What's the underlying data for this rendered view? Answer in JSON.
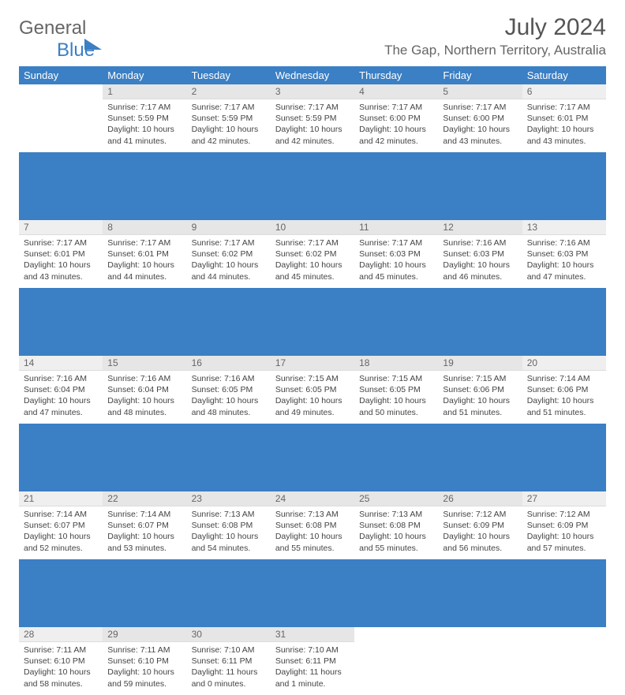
{
  "brand": {
    "part1": "General",
    "part2": "Blue"
  },
  "title": "July 2024",
  "subtitle": "The Gap, Northern Territory, Australia",
  "colors": {
    "accent": "#3b7fc4",
    "header_bg": "#e6e6e6",
    "text": "#444444"
  },
  "day_headers": [
    "Sunday",
    "Monday",
    "Tuesday",
    "Wednesday",
    "Thursday",
    "Friday",
    "Saturday"
  ],
  "weeks": [
    [
      {
        "n": "",
        "sr": "",
        "ss": "",
        "dl1": "",
        "dl2": "",
        "empty": true
      },
      {
        "n": "1",
        "sr": "Sunrise: 7:17 AM",
        "ss": "Sunset: 5:59 PM",
        "dl1": "Daylight: 10 hours",
        "dl2": "and 41 minutes."
      },
      {
        "n": "2",
        "sr": "Sunrise: 7:17 AM",
        "ss": "Sunset: 5:59 PM",
        "dl1": "Daylight: 10 hours",
        "dl2": "and 42 minutes."
      },
      {
        "n": "3",
        "sr": "Sunrise: 7:17 AM",
        "ss": "Sunset: 5:59 PM",
        "dl1": "Daylight: 10 hours",
        "dl2": "and 42 minutes."
      },
      {
        "n": "4",
        "sr": "Sunrise: 7:17 AM",
        "ss": "Sunset: 6:00 PM",
        "dl1": "Daylight: 10 hours",
        "dl2": "and 42 minutes."
      },
      {
        "n": "5",
        "sr": "Sunrise: 7:17 AM",
        "ss": "Sunset: 6:00 PM",
        "dl1": "Daylight: 10 hours",
        "dl2": "and 43 minutes."
      },
      {
        "n": "6",
        "sr": "Sunrise: 7:17 AM",
        "ss": "Sunset: 6:01 PM",
        "dl1": "Daylight: 10 hours",
        "dl2": "and 43 minutes."
      }
    ],
    [
      {
        "n": "7",
        "sr": "Sunrise: 7:17 AM",
        "ss": "Sunset: 6:01 PM",
        "dl1": "Daylight: 10 hours",
        "dl2": "and 43 minutes."
      },
      {
        "n": "8",
        "sr": "Sunrise: 7:17 AM",
        "ss": "Sunset: 6:01 PM",
        "dl1": "Daylight: 10 hours",
        "dl2": "and 44 minutes."
      },
      {
        "n": "9",
        "sr": "Sunrise: 7:17 AM",
        "ss": "Sunset: 6:02 PM",
        "dl1": "Daylight: 10 hours",
        "dl2": "and 44 minutes."
      },
      {
        "n": "10",
        "sr": "Sunrise: 7:17 AM",
        "ss": "Sunset: 6:02 PM",
        "dl1": "Daylight: 10 hours",
        "dl2": "and 45 minutes."
      },
      {
        "n": "11",
        "sr": "Sunrise: 7:17 AM",
        "ss": "Sunset: 6:03 PM",
        "dl1": "Daylight: 10 hours",
        "dl2": "and 45 minutes."
      },
      {
        "n": "12",
        "sr": "Sunrise: 7:16 AM",
        "ss": "Sunset: 6:03 PM",
        "dl1": "Daylight: 10 hours",
        "dl2": "and 46 minutes."
      },
      {
        "n": "13",
        "sr": "Sunrise: 7:16 AM",
        "ss": "Sunset: 6:03 PM",
        "dl1": "Daylight: 10 hours",
        "dl2": "and 47 minutes."
      }
    ],
    [
      {
        "n": "14",
        "sr": "Sunrise: 7:16 AM",
        "ss": "Sunset: 6:04 PM",
        "dl1": "Daylight: 10 hours",
        "dl2": "and 47 minutes."
      },
      {
        "n": "15",
        "sr": "Sunrise: 7:16 AM",
        "ss": "Sunset: 6:04 PM",
        "dl1": "Daylight: 10 hours",
        "dl2": "and 48 minutes."
      },
      {
        "n": "16",
        "sr": "Sunrise: 7:16 AM",
        "ss": "Sunset: 6:05 PM",
        "dl1": "Daylight: 10 hours",
        "dl2": "and 48 minutes."
      },
      {
        "n": "17",
        "sr": "Sunrise: 7:15 AM",
        "ss": "Sunset: 6:05 PM",
        "dl1": "Daylight: 10 hours",
        "dl2": "and 49 minutes."
      },
      {
        "n": "18",
        "sr": "Sunrise: 7:15 AM",
        "ss": "Sunset: 6:05 PM",
        "dl1": "Daylight: 10 hours",
        "dl2": "and 50 minutes."
      },
      {
        "n": "19",
        "sr": "Sunrise: 7:15 AM",
        "ss": "Sunset: 6:06 PM",
        "dl1": "Daylight: 10 hours",
        "dl2": "and 51 minutes."
      },
      {
        "n": "20",
        "sr": "Sunrise: 7:14 AM",
        "ss": "Sunset: 6:06 PM",
        "dl1": "Daylight: 10 hours",
        "dl2": "and 51 minutes."
      }
    ],
    [
      {
        "n": "21",
        "sr": "Sunrise: 7:14 AM",
        "ss": "Sunset: 6:07 PM",
        "dl1": "Daylight: 10 hours",
        "dl2": "and 52 minutes."
      },
      {
        "n": "22",
        "sr": "Sunrise: 7:14 AM",
        "ss": "Sunset: 6:07 PM",
        "dl1": "Daylight: 10 hours",
        "dl2": "and 53 minutes."
      },
      {
        "n": "23",
        "sr": "Sunrise: 7:13 AM",
        "ss": "Sunset: 6:08 PM",
        "dl1": "Daylight: 10 hours",
        "dl2": "and 54 minutes."
      },
      {
        "n": "24",
        "sr": "Sunrise: 7:13 AM",
        "ss": "Sunset: 6:08 PM",
        "dl1": "Daylight: 10 hours",
        "dl2": "and 55 minutes."
      },
      {
        "n": "25",
        "sr": "Sunrise: 7:13 AM",
        "ss": "Sunset: 6:08 PM",
        "dl1": "Daylight: 10 hours",
        "dl2": "and 55 minutes."
      },
      {
        "n": "26",
        "sr": "Sunrise: 7:12 AM",
        "ss": "Sunset: 6:09 PM",
        "dl1": "Daylight: 10 hours",
        "dl2": "and 56 minutes."
      },
      {
        "n": "27",
        "sr": "Sunrise: 7:12 AM",
        "ss": "Sunset: 6:09 PM",
        "dl1": "Daylight: 10 hours",
        "dl2": "and 57 minutes."
      }
    ],
    [
      {
        "n": "28",
        "sr": "Sunrise: 7:11 AM",
        "ss": "Sunset: 6:10 PM",
        "dl1": "Daylight: 10 hours",
        "dl2": "and 58 minutes."
      },
      {
        "n": "29",
        "sr": "Sunrise: 7:11 AM",
        "ss": "Sunset: 6:10 PM",
        "dl1": "Daylight: 10 hours",
        "dl2": "and 59 minutes."
      },
      {
        "n": "30",
        "sr": "Sunrise: 7:10 AM",
        "ss": "Sunset: 6:11 PM",
        "dl1": "Daylight: 11 hours",
        "dl2": "and 0 minutes."
      },
      {
        "n": "31",
        "sr": "Sunrise: 7:10 AM",
        "ss": "Sunset: 6:11 PM",
        "dl1": "Daylight: 11 hours",
        "dl2": "and 1 minute."
      },
      {
        "n": "",
        "sr": "",
        "ss": "",
        "dl1": "",
        "dl2": "",
        "empty": true
      },
      {
        "n": "",
        "sr": "",
        "ss": "",
        "dl1": "",
        "dl2": "",
        "empty": true
      },
      {
        "n": "",
        "sr": "",
        "ss": "",
        "dl1": "",
        "dl2": "",
        "empty": true
      }
    ]
  ]
}
